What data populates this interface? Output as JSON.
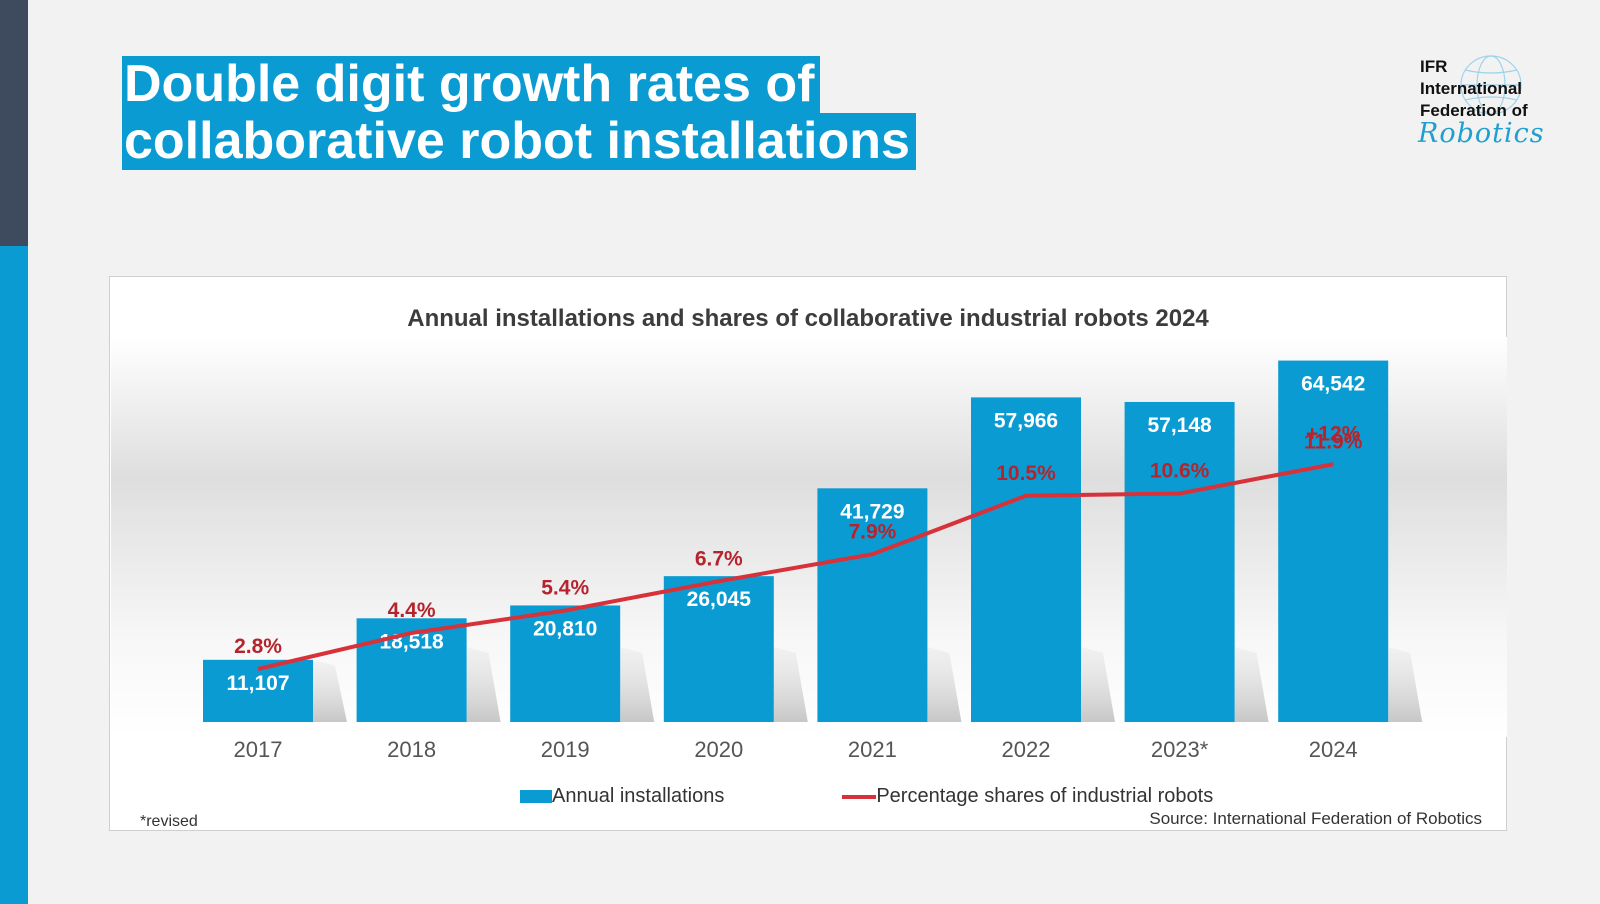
{
  "slide": {
    "headline_line1": "Double digit growth rates of",
    "headline_line2": "collaborative robot installations"
  },
  "logo": {
    "line1": "IFR",
    "line2": "International",
    "line3": "Federation of",
    "script": "Robotics"
  },
  "chart_data": {
    "type": "bar",
    "title": "Annual installations and shares of collaborative industrial robots 2024",
    "categories": [
      "2017",
      "2018",
      "2019",
      "2020",
      "2021",
      "2022",
      "2023*",
      "2024"
    ],
    "series": [
      {
        "name": "Annual installations",
        "type": "bar",
        "values": [
          11107,
          18518,
          20810,
          26045,
          41729,
          57966,
          57148,
          64542
        ],
        "labels": [
          "11,107",
          "18,518",
          "20,810",
          "26,045",
          "41,729",
          "57,966",
          "57,148",
          "64,542"
        ]
      },
      {
        "name": "Percentage shares of industrial robots",
        "type": "line",
        "values": [
          2.8,
          4.4,
          5.4,
          6.7,
          7.9,
          10.5,
          10.6,
          11.9
        ],
        "labels": [
          "2.8%",
          "4.4%",
          "5.4%",
          "6.7%",
          "7.9%",
          "10.5%",
          "10.6%",
          "11.9%"
        ]
      }
    ],
    "annotation": "+12%",
    "bar_ylim": [
      0,
      75000
    ],
    "line_ylim": [
      0,
      16
    ],
    "grid": false,
    "legend_position": "bottom",
    "colors": {
      "bar": "#0b9bd3",
      "line": "#d7313a",
      "line_label": "#b5242c"
    }
  },
  "footer": {
    "revised": "*revised",
    "source": "Source: International Federation of Robotics"
  }
}
